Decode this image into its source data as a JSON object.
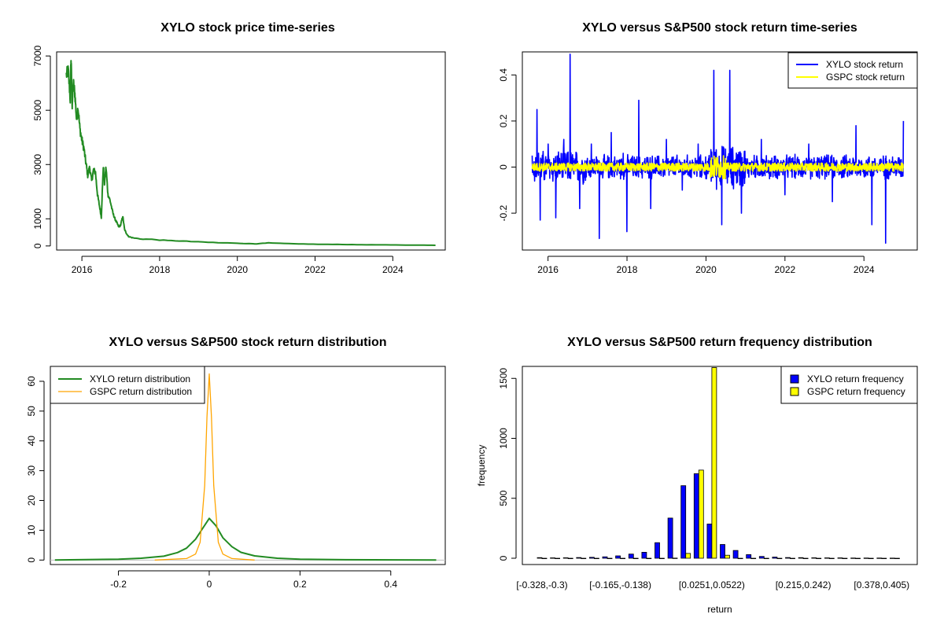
{
  "chart_data": [
    {
      "id": "price",
      "type": "line",
      "title": "XYLO stock price time-series",
      "xlabel": "",
      "ylabel": "",
      "xlim": [
        2015.35,
        2025.35
      ],
      "ylim": [
        -150,
        7150
      ],
      "x_ticks": [
        2016,
        2018,
        2020,
        2022,
        2024
      ],
      "y_ticks": [
        0,
        1000,
        3000,
        5000,
        7000
      ],
      "grid": false,
      "series": [
        {
          "color": "#228B22",
          "x": [
            2015.6,
            2015.65,
            2015.7,
            2015.72,
            2015.75,
            2015.78,
            2015.82,
            2015.86,
            2015.9,
            2015.95,
            2016.0,
            2016.05,
            2016.1,
            2016.15,
            2016.2,
            2016.25,
            2016.3,
            2016.35,
            2016.4,
            2016.45,
            2016.5,
            2016.55,
            2016.58,
            2016.62,
            2016.67,
            2016.72,
            2016.8,
            2016.85,
            2016.9,
            2016.95,
            2017.0,
            2017.05,
            2017.1,
            2017.15,
            2017.2,
            2017.3,
            2017.5,
            2017.8,
            2018.2,
            2018.6,
            2019.0,
            2019.5,
            2020.0,
            2020.3,
            2020.5,
            2020.8,
            2021.2,
            2021.7,
            2022.2,
            2022.7,
            2023.2,
            2023.7,
            2024.2,
            2024.7,
            2025.1
          ],
          "values": [
            6300,
            6450,
            5400,
            6950,
            5200,
            6000,
            5600,
            4700,
            5100,
            4300,
            3900,
            3600,
            3100,
            2600,
            2900,
            2400,
            2800,
            2700,
            1900,
            1500,
            1050,
            2950,
            2300,
            2900,
            1900,
            1700,
            1200,
            1000,
            850,
            700,
            780,
            1100,
            600,
            450,
            350,
            300,
            260,
            240,
            200,
            180,
            150,
            120,
            100,
            85,
            80,
            110,
            90,
            70,
            60,
            55,
            45,
            40,
            35,
            30,
            25
          ]
        }
      ]
    },
    {
      "id": "returns",
      "type": "line",
      "title": "XYLO versus S&P500 stock return time-series",
      "xlabel": "",
      "ylabel": "",
      "xlim": [
        2015.35,
        2025.35
      ],
      "ylim": [
        -0.36,
        0.5
      ],
      "x_ticks": [
        2016,
        2018,
        2020,
        2022,
        2024
      ],
      "y_ticks": [
        -0.2,
        0.0,
        0.2,
        0.4
      ],
      "legend": "top-right",
      "grid": false,
      "series": [
        {
          "name": "XYLO stock return",
          "color": "#0000FF",
          "x": [
            2015.6,
            2015.72,
            2015.8,
            2016.0,
            2016.2,
            2016.4,
            2016.56,
            2016.8,
            2017.1,
            2017.3,
            2017.6,
            2017.9,
            2018.0,
            2018.3,
            2018.6,
            2019.0,
            2019.4,
            2019.8,
            2020.0,
            2020.2,
            2020.4,
            2020.6,
            2020.9,
            2021.4,
            2022.0,
            2022.6,
            2023.2,
            2023.8,
            2024.2,
            2024.55,
            2025.0
          ],
          "values": [
            0.05,
            0.25,
            -0.23,
            0.1,
            -0.22,
            0.12,
            0.49,
            -0.18,
            0.1,
            -0.31,
            0.15,
            0.06,
            -0.28,
            0.29,
            -0.18,
            0.12,
            -0.1,
            0.1,
            -0.05,
            0.42,
            -0.25,
            0.42,
            -0.2,
            0.12,
            -0.12,
            0.1,
            -0.15,
            0.18,
            -0.25,
            -0.33,
            0.2
          ]
        },
        {
          "name": "GSPC stock return",
          "color": "#FFFF00",
          "x": [
            2015.6,
            2016.0,
            2017.0,
            2018.0,
            2019.0,
            2020.0,
            2020.2,
            2020.4,
            2021.0,
            2022.0,
            2023.0,
            2024.0,
            2025.0
          ],
          "values": [
            0.0,
            -0.02,
            0.01,
            -0.03,
            0.02,
            -0.05,
            0.04,
            -0.03,
            0.02,
            -0.03,
            0.02,
            -0.02,
            0.01
          ]
        }
      ]
    },
    {
      "id": "density",
      "type": "line",
      "title": "XYLO versus S&P500 stock return distribution",
      "xlabel": "",
      "ylabel": "",
      "xlim": [
        -0.35,
        0.52
      ],
      "ylim": [
        -1.5,
        65
      ],
      "x_ticks": [
        -0.2,
        0.0,
        0.2,
        0.4
      ],
      "y_ticks": [
        0,
        10,
        20,
        30,
        40,
        50,
        60
      ],
      "legend": "top-left",
      "grid": false,
      "series": [
        {
          "name": "XYLO return distribution",
          "color": "#228B22",
          "x": [
            -0.34,
            -0.2,
            -0.15,
            -0.1,
            -0.07,
            -0.05,
            -0.03,
            -0.015,
            0.0,
            0.015,
            0.03,
            0.05,
            0.07,
            0.1,
            0.15,
            0.2,
            0.3,
            0.5
          ],
          "values": [
            0.0,
            0.3,
            0.6,
            1.3,
            2.5,
            4.0,
            7.0,
            10.5,
            14.0,
            11.5,
            7.5,
            4.5,
            2.6,
            1.4,
            0.6,
            0.3,
            0.1,
            0.0
          ]
        },
        {
          "name": "GSPC return distribution",
          "color": "#FFA500",
          "x": [
            -0.12,
            -0.05,
            -0.03,
            -0.02,
            -0.01,
            -0.005,
            0.0,
            0.005,
            0.01,
            0.02,
            0.03,
            0.05,
            0.1
          ],
          "values": [
            0.0,
            0.5,
            2.0,
            6.0,
            25.0,
            48.0,
            62.5,
            48.0,
            25.0,
            6.0,
            2.0,
            0.5,
            0.0
          ]
        }
      ]
    },
    {
      "id": "frequency",
      "type": "bar",
      "title": "XYLO versus S&P500 return frequency distribution",
      "xlabel": "return",
      "ylabel": "frequency",
      "ylim": [
        0,
        1600
      ],
      "y_ticks": [
        0,
        500,
        1000,
        1500
      ],
      "legend": "top-right",
      "grid": false,
      "categories": [
        "[-0.328,-0.3)",
        "[-0.3,-0.274)",
        "[-0.274,-0.247)",
        "[-0.247,-0.219)",
        "[-0.219,-0.192)",
        "[-0.192,-0.165)",
        "[-0.165,-0.138)",
        "[-0.138,-0.111)",
        "[-0.111,-0.0834)",
        "[-0.0834,-0.0563)",
        "[-0.0563,-0.0292)",
        "[-0.0292,-0.00206)",
        "[-0.00206,0.0251)",
        "[0.0251,0.0522)",
        "[0.0522,0.0793)",
        "[0.0793,0.106)",
        "[0.106,0.134)",
        "[0.134,0.161)",
        "[0.161,0.188)",
        "[0.188,0.215)",
        "[0.215,0.242)",
        "[0.242,0.269)",
        "[0.269,0.296)",
        "[0.296,0.323)",
        "[0.323,0.351)",
        "[0.351,0.378)",
        "[0.378,0.405)",
        "[0.405,0.432)"
      ],
      "shown_category_labels": [
        "[-0.328,-0.3)",
        "[-0.165,-0.138)",
        "[0.0251,0.0522)",
        "[0.215,0.242)",
        "[0.378,0.405)"
      ],
      "series": [
        {
          "name": "XYLO return frequency",
          "color": "#0000FF",
          "values": [
            5,
            3,
            4,
            6,
            8,
            12,
            20,
            35,
            50,
            130,
            335,
            605,
            705,
            285,
            115,
            65,
            30,
            15,
            10,
            6,
            5,
            4,
            3,
            3,
            2,
            2,
            2,
            1
          ]
        },
        {
          "name": "GSPC return frequency",
          "color": "#FFFF00",
          "values": [
            0,
            0,
            0,
            0,
            0,
            0,
            0,
            0,
            0,
            0,
            1,
            40,
            735,
            1590,
            25,
            0,
            0,
            0,
            0,
            0,
            0,
            0,
            0,
            0,
            0,
            0,
            0,
            0
          ]
        }
      ]
    }
  ]
}
